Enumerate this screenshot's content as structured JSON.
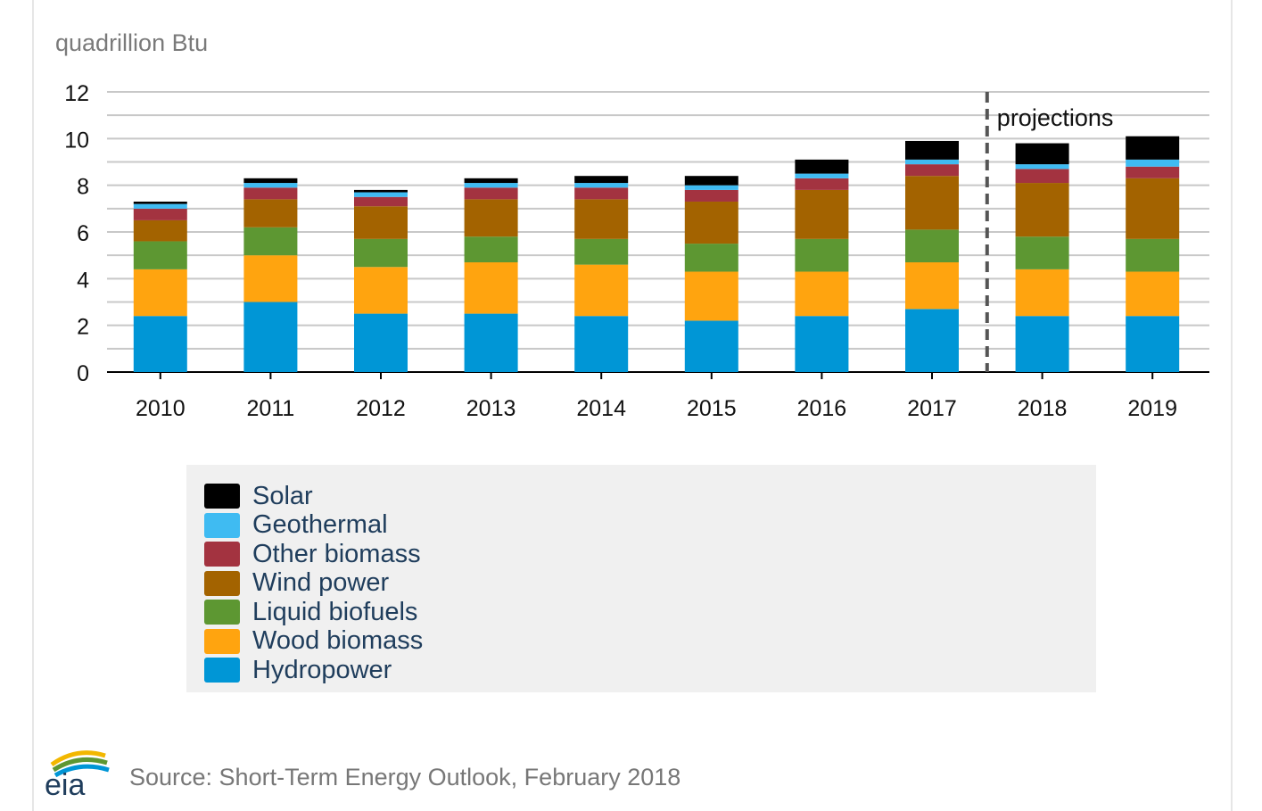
{
  "chart_data": {
    "type": "bar",
    "stacked": true,
    "ylabel": "quadrillion Btu",
    "ylim": [
      0,
      12
    ],
    "yticks": [
      0,
      2,
      4,
      6,
      8,
      10,
      12
    ],
    "grid": true,
    "categories": [
      "2010",
      "2011",
      "2012",
      "2013",
      "2014",
      "2015",
      "2016",
      "2017",
      "2018",
      "2019"
    ],
    "annotation": "projections",
    "projection_start_after": "2017",
    "legend_position": "bottom",
    "series": [
      {
        "name": "Hydropower",
        "color": "#0096d6",
        "values": [
          2.4,
          3.0,
          2.5,
          2.5,
          2.4,
          2.2,
          2.4,
          2.7,
          2.4,
          2.4
        ]
      },
      {
        "name": "Wood biomass",
        "color": "#ffa40f",
        "values": [
          2.0,
          2.0,
          2.0,
          2.2,
          2.2,
          2.1,
          1.9,
          2.0,
          2.0,
          1.9
        ]
      },
      {
        "name": "Liquid biofuels",
        "color": "#5d9732",
        "values": [
          1.2,
          1.2,
          1.2,
          1.1,
          1.1,
          1.2,
          1.4,
          1.4,
          1.4,
          1.4
        ]
      },
      {
        "name": "Wind power",
        "color": "#a36300",
        "values": [
          0.9,
          1.2,
          1.4,
          1.6,
          1.7,
          1.8,
          2.1,
          2.3,
          2.3,
          2.6
        ]
      },
      {
        "name": "Other biomass",
        "color": "#a33340",
        "values": [
          0.5,
          0.5,
          0.4,
          0.5,
          0.5,
          0.5,
          0.5,
          0.5,
          0.6,
          0.5
        ]
      },
      {
        "name": "Geothermal",
        "color": "#3fbbf2",
        "values": [
          0.2,
          0.2,
          0.2,
          0.2,
          0.2,
          0.2,
          0.2,
          0.2,
          0.2,
          0.3
        ]
      },
      {
        "name": "Solar",
        "color": "#000000",
        "values": [
          0.1,
          0.2,
          0.1,
          0.2,
          0.3,
          0.4,
          0.6,
          0.8,
          0.9,
          1.0
        ]
      }
    ]
  },
  "legend_order": [
    "Solar",
    "Geothermal",
    "Other biomass",
    "Wind power",
    "Liquid biofuels",
    "Wood biomass",
    "Hydropower"
  ],
  "source": "Source: Short-Term Energy Outlook, February 2018",
  "logo_text": "eia"
}
